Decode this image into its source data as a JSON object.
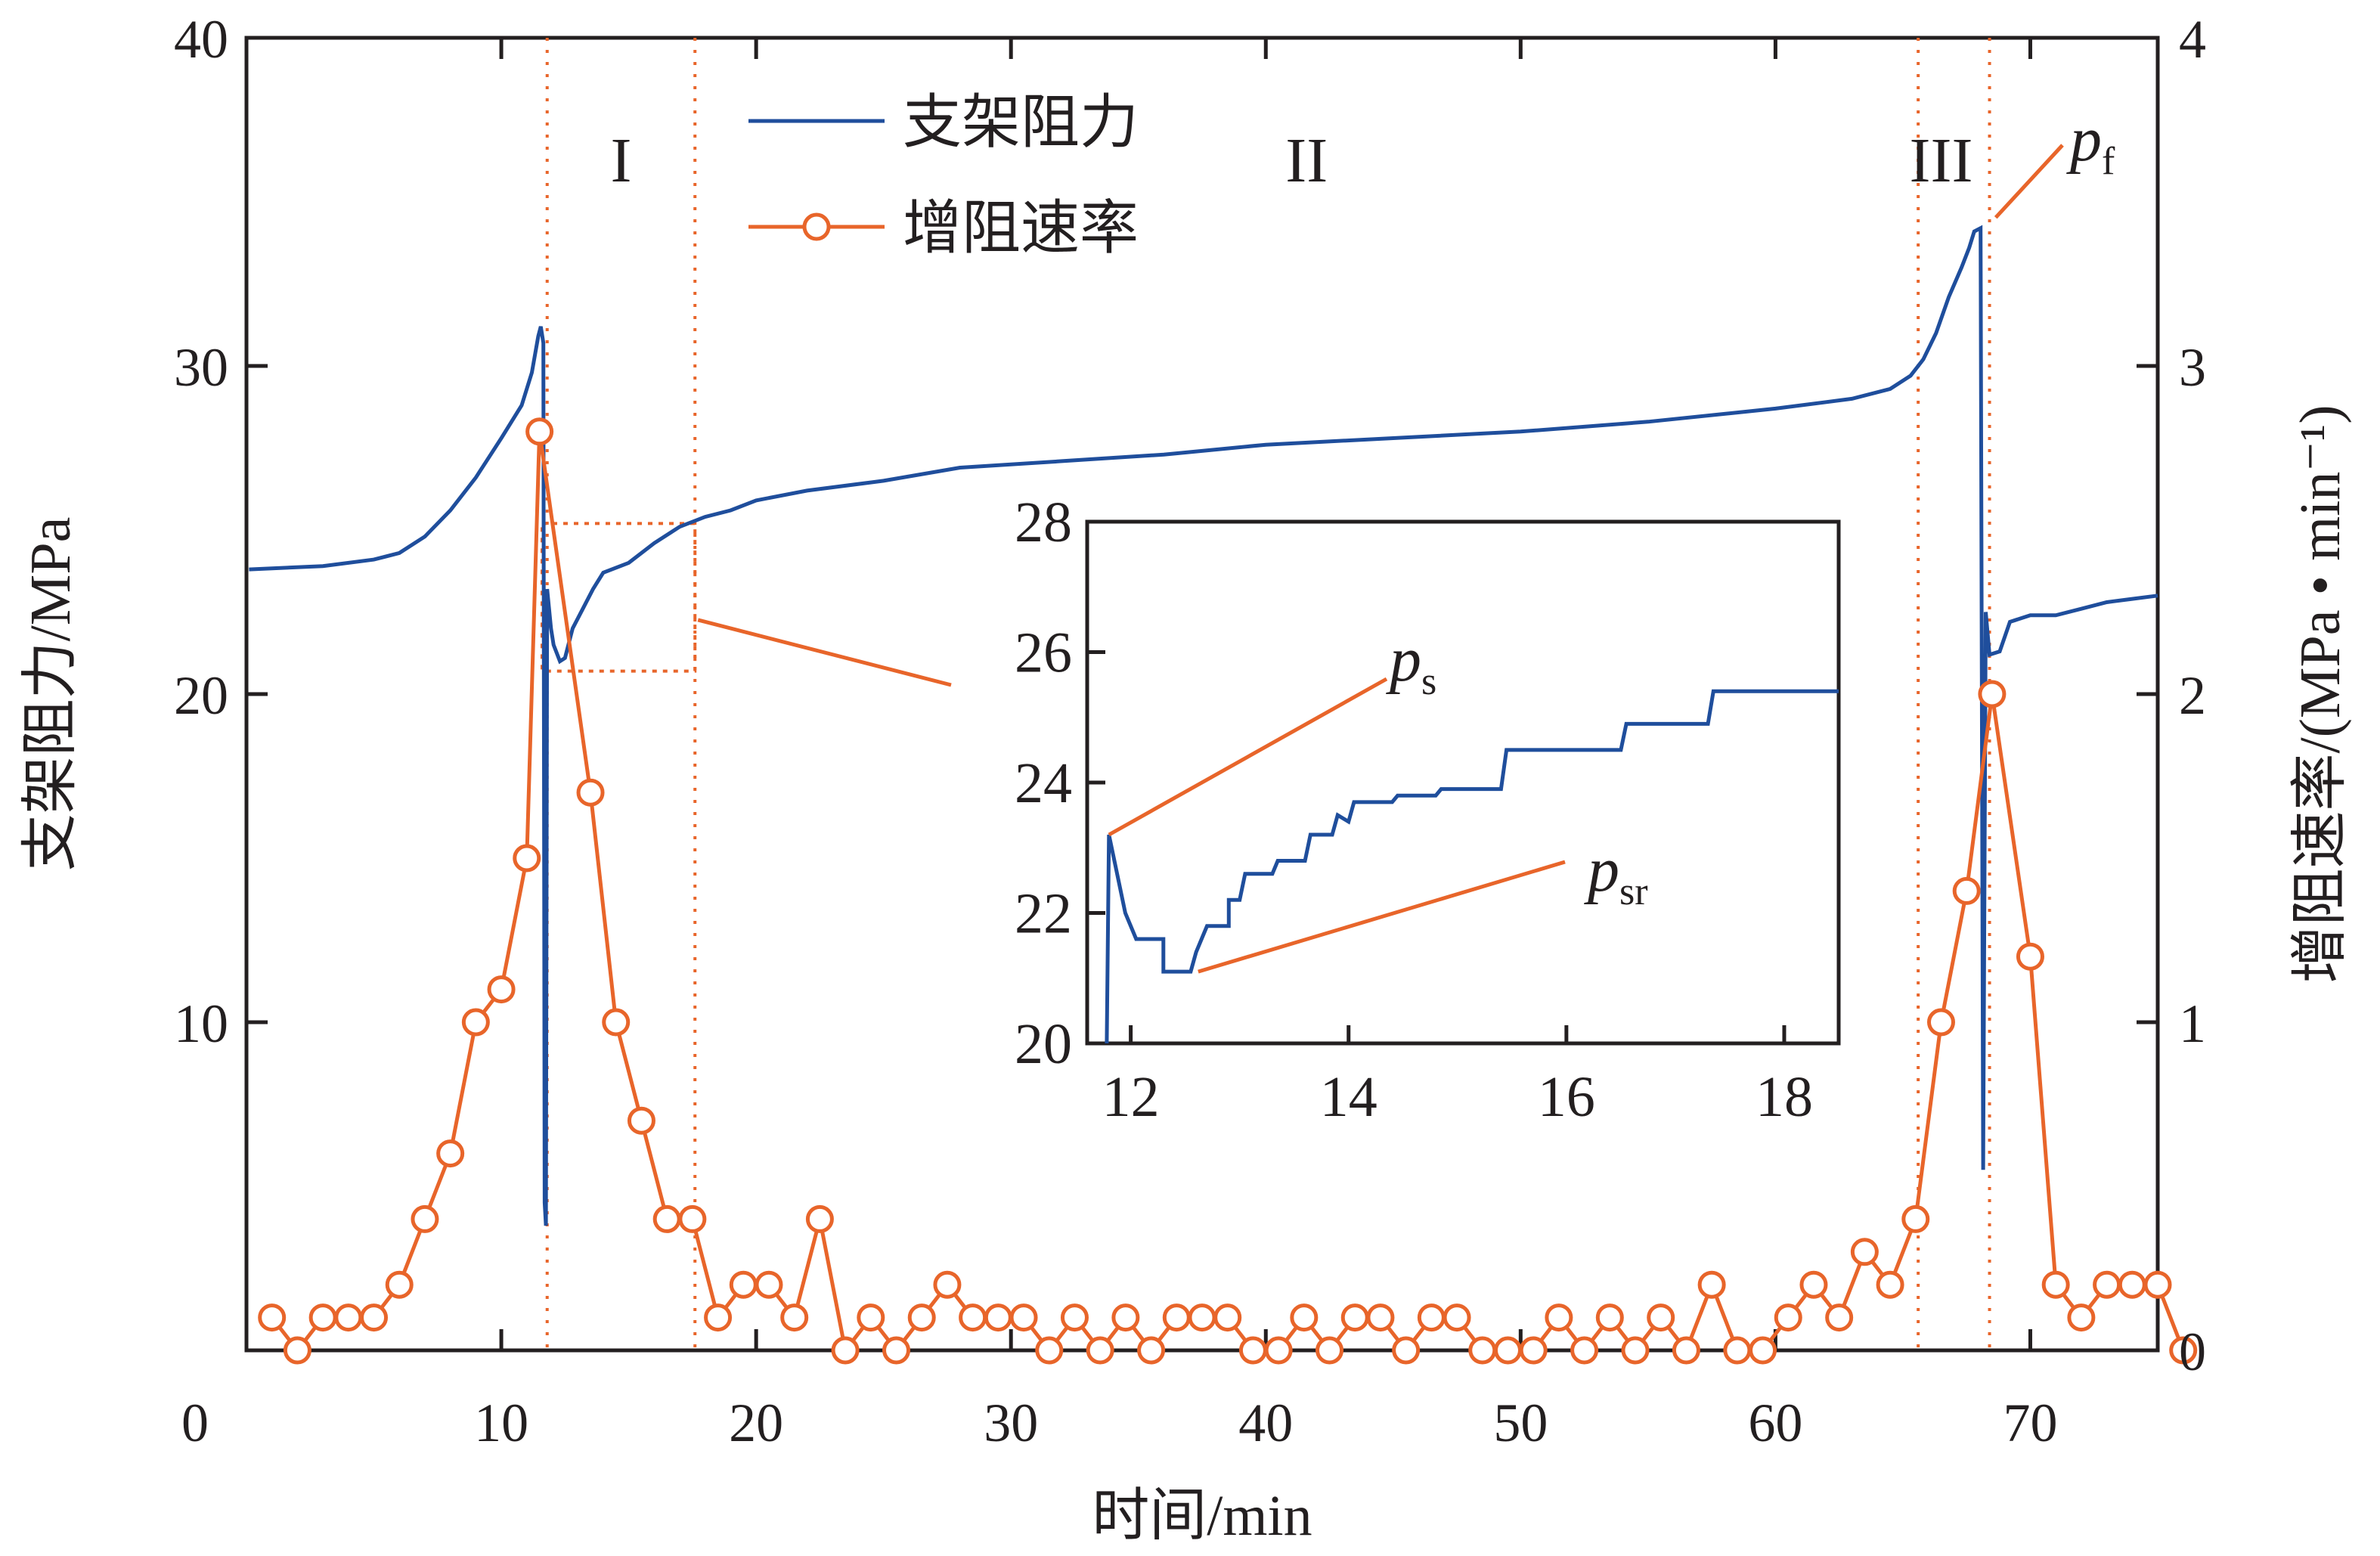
{
  "chart_data": {
    "type": "line",
    "xlabel": "时间/min",
    "ylabel": "支架阻力/MPa",
    "y2label": "增阻速率/(MPa • min⁻¹)",
    "xlim": [
      0,
      75
    ],
    "ylim": [
      0,
      40
    ],
    "y2lim": [
      0,
      4
    ],
    "x_ticks": [
      0,
      10,
      20,
      30,
      40,
      50,
      60,
      70
    ],
    "y_ticks": [
      10,
      20,
      30,
      40
    ],
    "y2_ticks": [
      0,
      1,
      2,
      3,
      4
    ],
    "grid": false,
    "legend_position": "top-center",
    "colors": {
      "resistance": "#1f4e9c",
      "rate": "#e8652a",
      "guide": "#e8652a",
      "axis": "#231f20"
    },
    "regions": [
      {
        "label": "I",
        "x": 14.7
      },
      {
        "label": "II",
        "x": 41.6
      },
      {
        "label": "III",
        "x": 66.5
      }
    ],
    "boundaries_x": [
      11.8,
      17.6,
      65.6,
      68.4
    ],
    "series": [
      {
        "name": "支架阻力",
        "axis": "left",
        "marker": "none",
        "points": [
          [
            0.1,
            23.8
          ],
          [
            3,
            23.9
          ],
          [
            5,
            24.1
          ],
          [
            6,
            24.3
          ],
          [
            7,
            24.8
          ],
          [
            8,
            25.6
          ],
          [
            9,
            26.6
          ],
          [
            10,
            27.8
          ],
          [
            10.8,
            28.8
          ],
          [
            11.2,
            29.8
          ],
          [
            11.45,
            30.9
          ],
          [
            11.55,
            31.2
          ],
          [
            11.65,
            30.7
          ],
          [
            11.7,
            4.5
          ],
          [
            11.75,
            3.8
          ],
          [
            11.8,
            23.2
          ],
          [
            11.95,
            22.0
          ],
          [
            12.05,
            21.5
          ],
          [
            12.3,
            21.0
          ],
          [
            12.5,
            21.1
          ],
          [
            12.8,
            22.0
          ],
          [
            13.2,
            22.6
          ],
          [
            13.6,
            23.2
          ],
          [
            14.0,
            23.7
          ],
          [
            15.0,
            24.0
          ],
          [
            16.0,
            24.6
          ],
          [
            17.0,
            25.1
          ],
          [
            18.0,
            25.4
          ],
          [
            19.0,
            25.6
          ],
          [
            20,
            25.9
          ],
          [
            22,
            26.2
          ],
          [
            25,
            26.5
          ],
          [
            28,
            26.9
          ],
          [
            32,
            27.1
          ],
          [
            36,
            27.3
          ],
          [
            40,
            27.6
          ],
          [
            45,
            27.8
          ],
          [
            50,
            28.0
          ],
          [
            55,
            28.3
          ],
          [
            60,
            28.7
          ],
          [
            63,
            29.0
          ],
          [
            64.5,
            29.3
          ],
          [
            65.3,
            29.7
          ],
          [
            65.8,
            30.2
          ],
          [
            66.3,
            31.0
          ],
          [
            66.8,
            32.1
          ],
          [
            67.3,
            33.0
          ],
          [
            67.6,
            33.6
          ],
          [
            67.8,
            34.1
          ],
          [
            68.05,
            34.2
          ],
          [
            68.15,
            5.5
          ],
          [
            68.25,
            22.5
          ],
          [
            68.4,
            21.2
          ],
          [
            68.8,
            21.3
          ],
          [
            69.2,
            22.2
          ],
          [
            70,
            22.4
          ],
          [
            71,
            22.4
          ],
          [
            72,
            22.6
          ],
          [
            73,
            22.8
          ],
          [
            74,
            22.9
          ],
          [
            75,
            23.0
          ]
        ]
      },
      {
        "name": "增阻速率",
        "axis": "right",
        "marker": "circle",
        "points": [
          [
            1,
            0.1
          ],
          [
            2,
            0.0
          ],
          [
            3,
            0.1
          ],
          [
            4,
            0.1
          ],
          [
            5,
            0.1
          ],
          [
            6,
            0.2
          ],
          [
            7,
            0.4
          ],
          [
            8,
            0.6
          ],
          [
            9,
            1.0
          ],
          [
            10,
            1.1
          ],
          [
            11,
            1.5
          ],
          [
            11.5,
            2.8
          ],
          [
            13.5,
            1.7
          ],
          [
            14.5,
            1.0
          ],
          [
            15.5,
            0.7
          ],
          [
            16.5,
            0.4
          ],
          [
            17.5,
            0.4
          ],
          [
            18.5,
            0.1
          ],
          [
            19.5,
            0.2
          ],
          [
            20.5,
            0.2
          ],
          [
            21.5,
            0.1
          ],
          [
            22.5,
            0.4
          ],
          [
            23.5,
            0.0
          ],
          [
            24.5,
            0.1
          ],
          [
            25.5,
            0.0
          ],
          [
            26.5,
            0.1
          ],
          [
            27.5,
            0.2
          ],
          [
            28.5,
            0.1
          ],
          [
            29.5,
            0.1
          ],
          [
            30.5,
            0.1
          ],
          [
            31.5,
            0.0
          ],
          [
            32.5,
            0.1
          ],
          [
            33.5,
            0.0
          ],
          [
            34.5,
            0.1
          ],
          [
            35.5,
            0.0
          ],
          [
            36.5,
            0.1
          ],
          [
            37.5,
            0.1
          ],
          [
            38.5,
            0.1
          ],
          [
            39.5,
            0.0
          ],
          [
            40.5,
            0.0
          ],
          [
            41.5,
            0.1
          ],
          [
            42.5,
            0.0
          ],
          [
            43.5,
            0.1
          ],
          [
            44.5,
            0.1
          ],
          [
            45.5,
            0.0
          ],
          [
            46.5,
            0.1
          ],
          [
            47.5,
            0.1
          ],
          [
            48.5,
            0.0
          ],
          [
            49.5,
            0.0
          ],
          [
            50.5,
            0.0
          ],
          [
            51.5,
            0.1
          ],
          [
            52.5,
            0.0
          ],
          [
            53.5,
            0.1
          ],
          [
            54.5,
            0.0
          ],
          [
            55.5,
            0.1
          ],
          [
            56.5,
            0.0
          ],
          [
            57.5,
            0.2
          ],
          [
            58.5,
            0.0
          ],
          [
            59.5,
            0.0
          ],
          [
            60.5,
            0.1
          ],
          [
            61.5,
            0.2
          ],
          [
            62.5,
            0.1
          ],
          [
            63.5,
            0.3
          ],
          [
            64.5,
            0.2
          ],
          [
            65.5,
            0.4
          ],
          [
            66.5,
            1.0
          ],
          [
            67.5,
            1.4
          ],
          [
            68.5,
            2.0
          ],
          [
            70.0,
            1.2
          ],
          [
            71.0,
            0.2
          ],
          [
            72.0,
            0.1
          ],
          [
            73.0,
            0.2
          ],
          [
            74.0,
            0.2
          ],
          [
            75.0,
            0.2
          ],
          [
            76.0,
            0.0
          ]
        ]
      }
    ],
    "zoom_box": {
      "x": [
        11.6,
        17.6
      ],
      "y": [
        20.7,
        25.2
      ]
    },
    "inset": {
      "xlim": [
        11.6,
        18.5
      ],
      "ylim": [
        20,
        28
      ],
      "x_ticks": [
        12,
        14,
        16,
        18
      ],
      "y_ticks": [
        20,
        22,
        24,
        26,
        28
      ],
      "points": [
        [
          11.78,
          20.0
        ],
        [
          11.8,
          23.2
        ],
        [
          11.95,
          22.0
        ],
        [
          12.05,
          21.6
        ],
        [
          12.3,
          21.6
        ],
        [
          12.3,
          21.1
        ],
        [
          12.55,
          21.1
        ],
        [
          12.6,
          21.4
        ],
        [
          12.7,
          21.8
        ],
        [
          12.9,
          21.8
        ],
        [
          12.9,
          22.2
        ],
        [
          13.0,
          22.2
        ],
        [
          13.05,
          22.6
        ],
        [
          13.3,
          22.6
        ],
        [
          13.35,
          22.8
        ],
        [
          13.6,
          22.8
        ],
        [
          13.65,
          23.2
        ],
        [
          13.85,
          23.2
        ],
        [
          13.9,
          23.5
        ],
        [
          14.0,
          23.4
        ],
        [
          14.05,
          23.7
        ],
        [
          14.4,
          23.7
        ],
        [
          14.45,
          23.8
        ],
        [
          14.8,
          23.8
        ],
        [
          14.85,
          23.9
        ],
        [
          15.4,
          23.9
        ],
        [
          15.45,
          24.5
        ],
        [
          16.5,
          24.5
        ],
        [
          16.55,
          24.9
        ],
        [
          17.3,
          24.9
        ],
        [
          17.35,
          25.4
        ],
        [
          18.5,
          25.4
        ]
      ]
    },
    "annotations": [
      {
        "symbol": "p",
        "subscript": "s",
        "target": [
          11.8,
          23.2
        ]
      },
      {
        "symbol": "p",
        "subscript": "sr",
        "target": [
          12.55,
          21.1
        ]
      },
      {
        "symbol": "p",
        "subscript": "f",
        "target": [
          68.05,
          34.2
        ]
      }
    ],
    "legend": [
      {
        "label": "支架阻力",
        "style": "line"
      },
      {
        "label": "增阻速率",
        "style": "line-circle"
      }
    ]
  }
}
